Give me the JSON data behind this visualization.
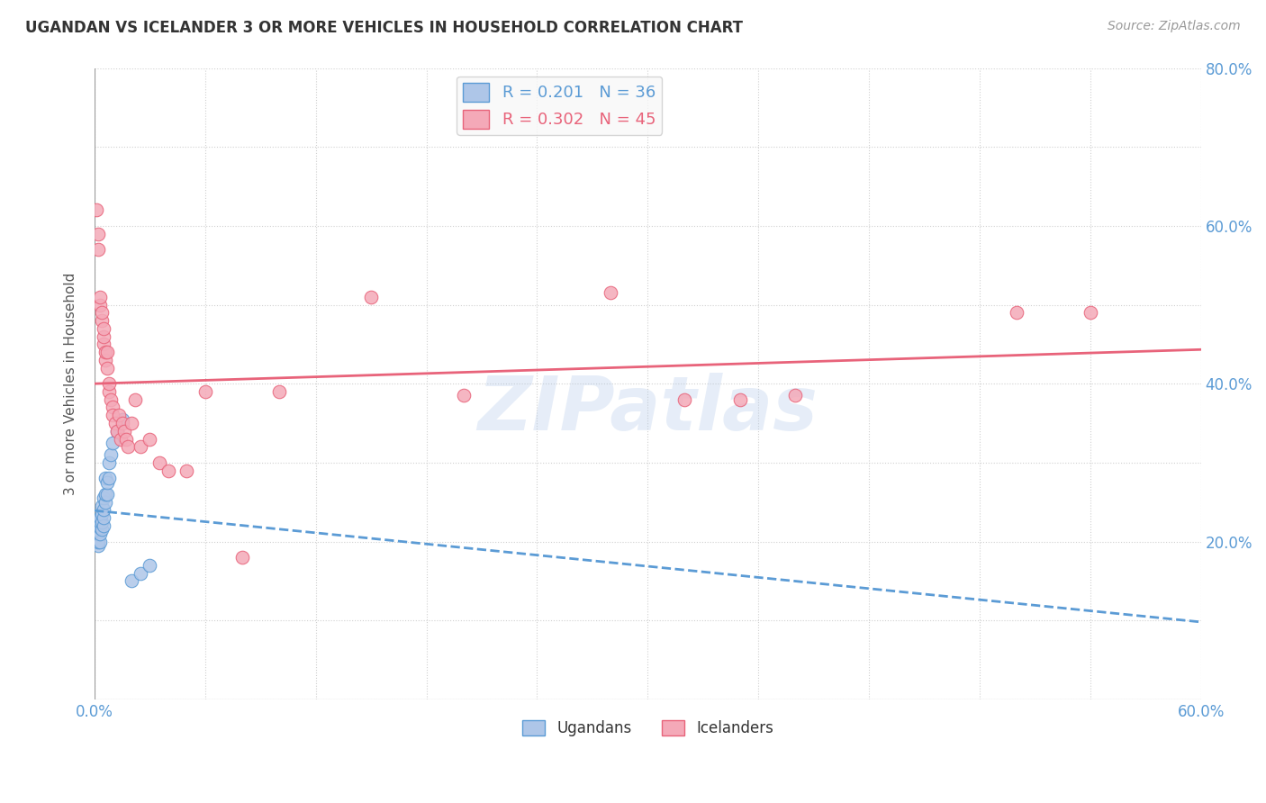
{
  "title": "UGANDAN VS ICELANDER 3 OR MORE VEHICLES IN HOUSEHOLD CORRELATION CHART",
  "source": "Source: ZipAtlas.com",
  "ylabel": "3 or more Vehicles in Household",
  "watermark": "ZIPatlas",
  "xlim": [
    0.0,
    0.6
  ],
  "ylim": [
    0.0,
    0.8
  ],
  "ugandan_color": "#aec6e8",
  "icelander_color": "#f4a9b8",
  "ugandan_line_color": "#5b9bd5",
  "icelander_line_color": "#e8637a",
  "legend_label_ugandan": "R = 0.201   N = 36",
  "legend_label_icelander": "R = 0.302   N = 45",
  "legend_label_ugandan_bottom": "Ugandans",
  "legend_label_icelander_bottom": "Icelanders",
  "ugandan_R": 0.201,
  "icelander_R": 0.302,
  "ugandan_N": 36,
  "icelander_N": 45,
  "ugandan_x": [
    0.001,
    0.001,
    0.001,
    0.001,
    0.002,
    0.002,
    0.002,
    0.002,
    0.002,
    0.003,
    0.003,
    0.003,
    0.003,
    0.003,
    0.004,
    0.004,
    0.004,
    0.004,
    0.005,
    0.005,
    0.005,
    0.005,
    0.006,
    0.006,
    0.006,
    0.007,
    0.007,
    0.008,
    0.008,
    0.009,
    0.01,
    0.012,
    0.015,
    0.02,
    0.025,
    0.03
  ],
  "ugandan_y": [
    0.2,
    0.21,
    0.215,
    0.22,
    0.195,
    0.2,
    0.21,
    0.22,
    0.225,
    0.2,
    0.21,
    0.218,
    0.225,
    0.23,
    0.215,
    0.225,
    0.235,
    0.245,
    0.22,
    0.23,
    0.24,
    0.255,
    0.25,
    0.26,
    0.28,
    0.26,
    0.275,
    0.28,
    0.3,
    0.31,
    0.325,
    0.34,
    0.355,
    0.15,
    0.16,
    0.17
  ],
  "icelander_x": [
    0.001,
    0.002,
    0.002,
    0.003,
    0.003,
    0.004,
    0.004,
    0.005,
    0.005,
    0.005,
    0.006,
    0.006,
    0.007,
    0.007,
    0.008,
    0.008,
    0.009,
    0.01,
    0.01,
    0.011,
    0.012,
    0.013,
    0.014,
    0.015,
    0.016,
    0.017,
    0.018,
    0.02,
    0.022,
    0.025,
    0.03,
    0.035,
    0.04,
    0.05,
    0.06,
    0.08,
    0.1,
    0.15,
    0.2,
    0.28,
    0.32,
    0.35,
    0.38,
    0.5,
    0.54
  ],
  "icelander_y": [
    0.62,
    0.57,
    0.59,
    0.5,
    0.51,
    0.48,
    0.49,
    0.45,
    0.46,
    0.47,
    0.43,
    0.44,
    0.42,
    0.44,
    0.39,
    0.4,
    0.38,
    0.37,
    0.36,
    0.35,
    0.34,
    0.36,
    0.33,
    0.35,
    0.34,
    0.33,
    0.32,
    0.35,
    0.38,
    0.32,
    0.33,
    0.3,
    0.29,
    0.29,
    0.39,
    0.18,
    0.39,
    0.51,
    0.385,
    0.515,
    0.38,
    0.38,
    0.385,
    0.49,
    0.49
  ],
  "background_color": "#ffffff",
  "grid_color": "#d0d0d0"
}
